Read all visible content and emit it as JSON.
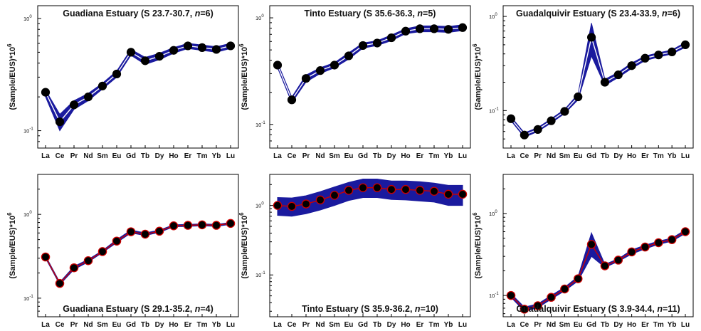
{
  "figure": {
    "rows": 2,
    "cols": 3
  },
  "styles": {
    "band_color": "#1a1a9e",
    "line_color_top": "#ffffff",
    "line_color_bottom": "#cc0000",
    "marker_fill": "#000000"
  },
  "chart_data": [
    {
      "type": "line",
      "title": "Guadiana Estuary (S 23.7-30.7, n=6)",
      "title_place": "top",
      "yscale": "log",
      "ylim": [
        0.07,
        1.3
      ],
      "ylabel": "(Sample/EUS)*10^6",
      "ytick_labels": [
        "10-1",
        "100"
      ],
      "categories": [
        "La",
        "Ce",
        "Pr",
        "Nd",
        "Sm",
        "Eu",
        "Gd",
        "Tb",
        "Dy",
        "Ho",
        "Er",
        "Tm",
        "Yb",
        "Lu"
      ],
      "series": [
        {
          "values": [
            0.22,
            0.12,
            0.17,
            0.2,
            0.25,
            0.32,
            0.5,
            0.42,
            0.46,
            0.52,
            0.57,
            0.55,
            0.53,
            0.57
          ],
          "min": [
            0.2,
            0.1,
            0.155,
            0.185,
            0.235,
            0.3,
            0.47,
            0.39,
            0.43,
            0.49,
            0.54,
            0.52,
            0.5,
            0.54
          ],
          "max": [
            0.23,
            0.14,
            0.185,
            0.215,
            0.265,
            0.34,
            0.53,
            0.45,
            0.49,
            0.55,
            0.6,
            0.58,
            0.56,
            0.6
          ]
        }
      ]
    },
    {
      "type": "line",
      "title": "Tinto Estuary (S 35.6-36.3, n=5)",
      "title_place": "top",
      "yscale": "log",
      "ylim": [
        0.06,
        1.3
      ],
      "ylabel": "(Sample/EUS)*10^6",
      "ytick_labels": [
        "10-1",
        "100"
      ],
      "categories": [
        "La",
        "Ce",
        "Pr",
        "Nd",
        "Sm",
        "Eu",
        "Gd",
        "Tb",
        "Dy",
        "Ho",
        "Er",
        "Tm",
        "Yb",
        "Lu"
      ],
      "series": [
        {
          "values": [
            0.36,
            0.17,
            0.27,
            0.32,
            0.36,
            0.44,
            0.55,
            0.58,
            0.65,
            0.75,
            0.79,
            0.79,
            0.78,
            0.81
          ],
          "min": [
            0.34,
            0.16,
            0.25,
            0.3,
            0.34,
            0.41,
            0.52,
            0.55,
            0.61,
            0.71,
            0.74,
            0.74,
            0.73,
            0.76
          ],
          "max": [
            0.38,
            0.18,
            0.29,
            0.34,
            0.38,
            0.47,
            0.58,
            0.61,
            0.69,
            0.79,
            0.84,
            0.84,
            0.83,
            0.86
          ]
        }
      ]
    },
    {
      "type": "line",
      "title": "Guadalquivir Estuary (S 23.4-33.9, n=6)",
      "title_place": "top",
      "yscale": "log",
      "ylim": [
        0.04,
        1.3
      ],
      "ylabel": "(Sample/EUS)*10^6",
      "ytick_labels": [
        "10-1",
        "100"
      ],
      "categories": [
        "La",
        "Ce",
        "Pr",
        "Nd",
        "Sm",
        "Eu",
        "Gd",
        "Tb",
        "Dy",
        "Ho",
        "Er",
        "Tm",
        "Yb",
        "Lu"
      ],
      "series": [
        {
          "values": [
            0.082,
            0.055,
            0.063,
            0.078,
            0.098,
            0.14,
            0.6,
            0.2,
            0.24,
            0.3,
            0.36,
            0.39,
            0.42,
            0.5
          ],
          "min": [
            0.078,
            0.052,
            0.06,
            0.074,
            0.093,
            0.13,
            0.38,
            0.185,
            0.225,
            0.28,
            0.34,
            0.37,
            0.4,
            0.47
          ],
          "max": [
            0.086,
            0.058,
            0.066,
            0.082,
            0.103,
            0.15,
            0.85,
            0.215,
            0.255,
            0.32,
            0.38,
            0.41,
            0.44,
            0.53
          ]
        }
      ]
    },
    {
      "type": "line",
      "title": "Guadiana Estuary (S 29.1-35.2, n=4)",
      "title_place": "bottom",
      "yscale": "log",
      "ylim": [
        0.06,
        3.0
      ],
      "ylabel": "(Sample/EUS)*10^6",
      "ytick_labels": [
        "10-1",
        "100"
      ],
      "categories": [
        "La",
        "Ce",
        "Pr",
        "Nd",
        "Sm",
        "Eu",
        "Gd",
        "Tb",
        "Dy",
        "Ho",
        "Er",
        "Tm",
        "Yb",
        "Lu"
      ],
      "series": [
        {
          "values": [
            0.31,
            0.15,
            0.23,
            0.28,
            0.36,
            0.48,
            0.62,
            0.58,
            0.63,
            0.73,
            0.74,
            0.75,
            0.74,
            0.78
          ],
          "min": [
            0.3,
            0.145,
            0.22,
            0.27,
            0.35,
            0.46,
            0.6,
            0.56,
            0.61,
            0.71,
            0.72,
            0.73,
            0.72,
            0.76
          ],
          "max": [
            0.32,
            0.155,
            0.24,
            0.29,
            0.37,
            0.5,
            0.65,
            0.6,
            0.65,
            0.75,
            0.76,
            0.77,
            0.76,
            0.8
          ]
        }
      ]
    },
    {
      "type": "line",
      "title": "Tinto Estuary (S 35.9-36.2, n=10)",
      "title_place": "bottom",
      "yscale": "log",
      "ylim": [
        0.025,
        2.8
      ],
      "ylabel": "(Sample/EUS)*10^6",
      "ytick_labels": [
        "10-1",
        "100"
      ],
      "categories": [
        "La",
        "Ce",
        "Pr",
        "Nd",
        "Sm",
        "Eu",
        "Gd",
        "Tb",
        "Dy",
        "Ho",
        "Er",
        "Tm",
        "Yb",
        "Lu"
      ],
      "series": [
        {
          "values": [
            1.0,
            0.97,
            1.05,
            1.2,
            1.4,
            1.65,
            1.8,
            1.8,
            1.7,
            1.7,
            1.65,
            1.6,
            1.45,
            1.45
          ],
          "min": [
            0.72,
            0.7,
            0.76,
            0.86,
            1.0,
            1.18,
            1.3,
            1.3,
            1.22,
            1.2,
            1.16,
            1.12,
            1.0,
            1.0
          ],
          "max": [
            1.3,
            1.28,
            1.38,
            1.58,
            1.85,
            2.15,
            2.4,
            2.4,
            2.25,
            2.25,
            2.2,
            2.1,
            1.95,
            1.95
          ]
        }
      ]
    },
    {
      "type": "line",
      "title": "Guadalquivir Estuary (S 3.9-34.4, n=11)",
      "title_place": "bottom",
      "yscale": "log",
      "ylim": [
        0.055,
        3.0
      ],
      "ylabel": "(Sample/EUS)*10^6",
      "ytick_labels": [
        "10-1",
        "100"
      ],
      "categories": [
        "La",
        "Ce",
        "Pr",
        "Nd",
        "Sm",
        "Eu",
        "Gd",
        "Tb",
        "Dy",
        "Ho",
        "Er",
        "Tm",
        "Yb",
        "Lu"
      ],
      "series": [
        {
          "values": [
            0.1,
            0.068,
            0.075,
            0.095,
            0.12,
            0.16,
            0.42,
            0.23,
            0.27,
            0.34,
            0.39,
            0.44,
            0.48,
            0.6
          ],
          "min": [
            0.095,
            0.064,
            0.071,
            0.09,
            0.114,
            0.15,
            0.3,
            0.22,
            0.26,
            0.32,
            0.37,
            0.42,
            0.46,
            0.57
          ],
          "max": [
            0.105,
            0.072,
            0.079,
            0.1,
            0.126,
            0.17,
            0.58,
            0.24,
            0.28,
            0.36,
            0.41,
            0.46,
            0.5,
            0.63
          ]
        }
      ]
    }
  ]
}
